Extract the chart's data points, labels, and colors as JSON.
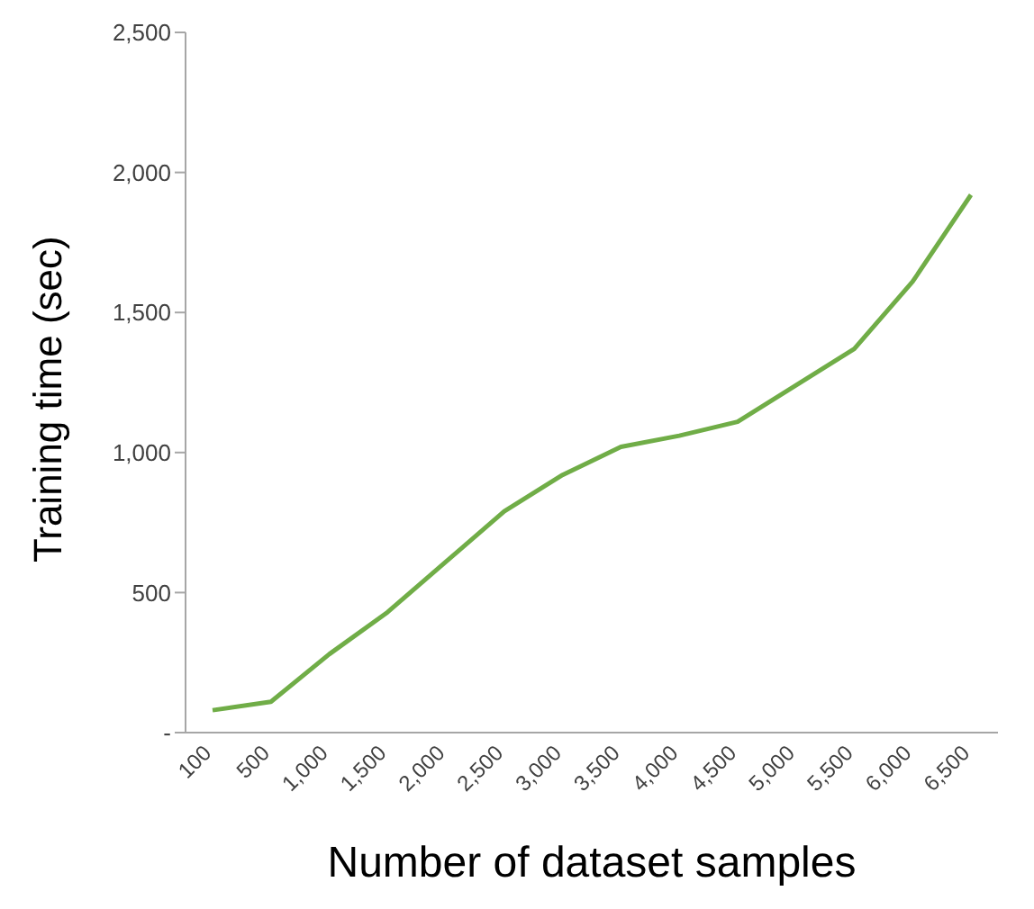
{
  "chart_data": {
    "type": "line",
    "xlabel": "Number of dataset samples",
    "ylabel": "Training time (sec)",
    "categories": [
      "100",
      "500",
      "1,000",
      "1,500",
      "2,000",
      "2,500",
      "3,000",
      "3,500",
      "4,000",
      "4,500",
      "5,000",
      "5,500",
      "6,000",
      "6,500"
    ],
    "series": [
      {
        "color": "#70ad47",
        "values": [
          80,
          110,
          280,
          430,
          610,
          790,
          920,
          1020,
          1060,
          1110,
          1240,
          1370,
          1610,
          1920
        ]
      }
    ],
    "ylim": [
      0,
      2500
    ],
    "yticks": [
      {
        "value": 0,
        "label": "-"
      },
      500,
      {
        "value": 1000,
        "label": "1,000"
      },
      {
        "value": 1500,
        "label": "1,500"
      },
      {
        "value": 2000,
        "label": "2,000"
      },
      {
        "value": 2500,
        "label": "2,500"
      }
    ],
    "grid": false,
    "legend": false,
    "marker": "none",
    "line_style": "solid"
  }
}
